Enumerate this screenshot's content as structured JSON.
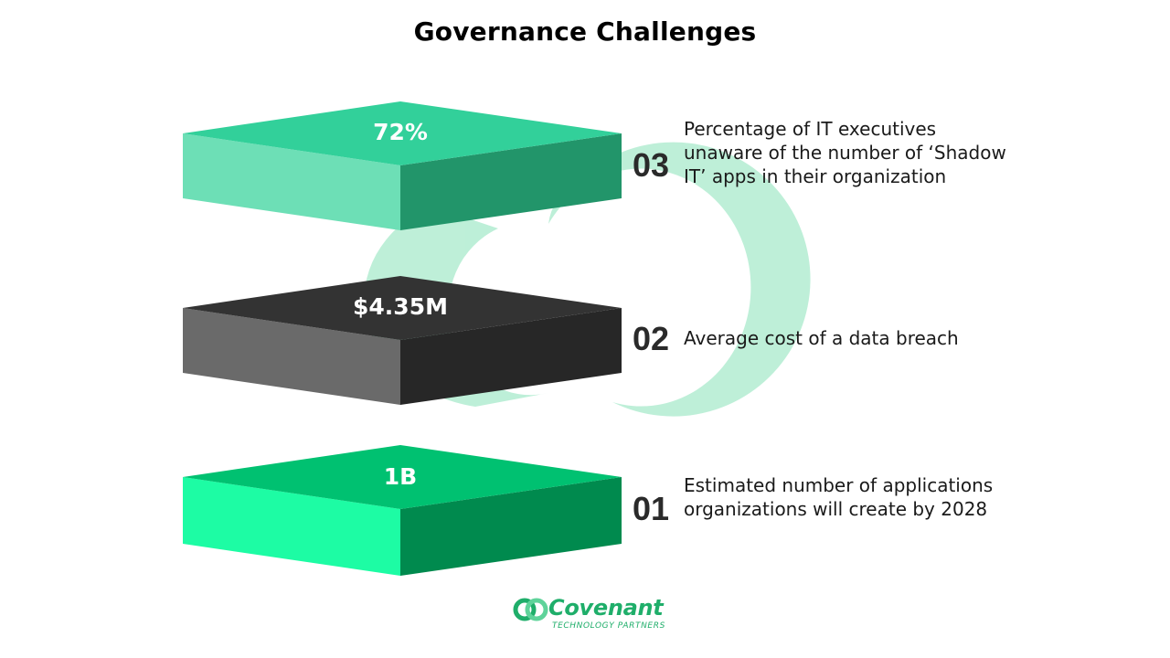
{
  "title": "Governance Challenges",
  "colors": {
    "tier3": {
      "top": "#32d09a",
      "left": "#6ddfb6",
      "right": "#22956a"
    },
    "tier2": {
      "top": "#333333",
      "left": "#6a6a6a",
      "right": "#272727"
    },
    "tier1": {
      "top": "#00c171",
      "left": "#1dfca4",
      "right": "#008a4e"
    },
    "watermark": "#a8eacb"
  },
  "tiers": [
    {
      "number": "03",
      "value": "72%",
      "description": "Percentage of IT executives unaware of the number of ‘Shadow IT’ apps in their organization"
    },
    {
      "number": "02",
      "value": "$4.35M",
      "description": "Average cost of a data breach"
    },
    {
      "number": "01",
      "value": "1B",
      "description": "Estimated number of applications organizations will create by 2028"
    }
  ],
  "logo": {
    "name": "Covenant",
    "tagline": "TECHNOLOGY PARTNERS",
    "icon": "covenant-logo-icon"
  }
}
